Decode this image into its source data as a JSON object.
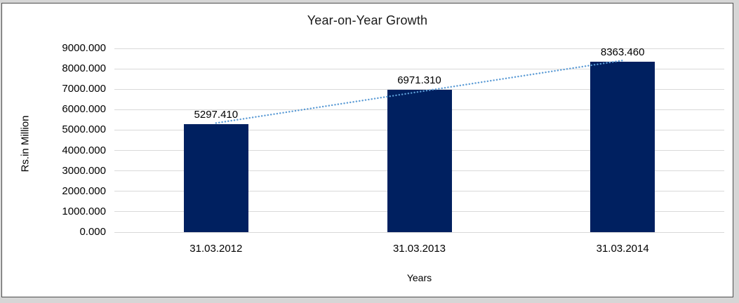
{
  "chart_data": {
    "type": "bar",
    "title": "Year-on-Year Growth",
    "xlabel": "Years",
    "ylabel": "Rs.in Million",
    "categories": [
      "31.03.2012",
      "31.03.2013",
      "31.03.2014"
    ],
    "values": [
      5297.41,
      6971.31,
      8363.46
    ],
    "data_labels": [
      "5297.410",
      "6971.310",
      "8363.460"
    ],
    "ylim": [
      0,
      9000
    ],
    "ytick_step": 1000,
    "ytick_labels": [
      "0.000",
      "1000.000",
      "2000.000",
      "3000.000",
      "4000.000",
      "5000.000",
      "6000.000",
      "7000.000",
      "8000.000",
      "9000.000"
    ],
    "grid": true,
    "legend": "none",
    "trendline": {
      "type": "linear",
      "style": "dotted"
    },
    "colors": {
      "bar": "#002060",
      "trendline": "#5b9bd5",
      "gridline": "#d9d9d9",
      "text": "#000000",
      "title_text": "#1a1a1a",
      "frame_border": "#4d4d4d",
      "outer_background": "#d6d6d6",
      "plot_background": "#ffffff"
    }
  }
}
